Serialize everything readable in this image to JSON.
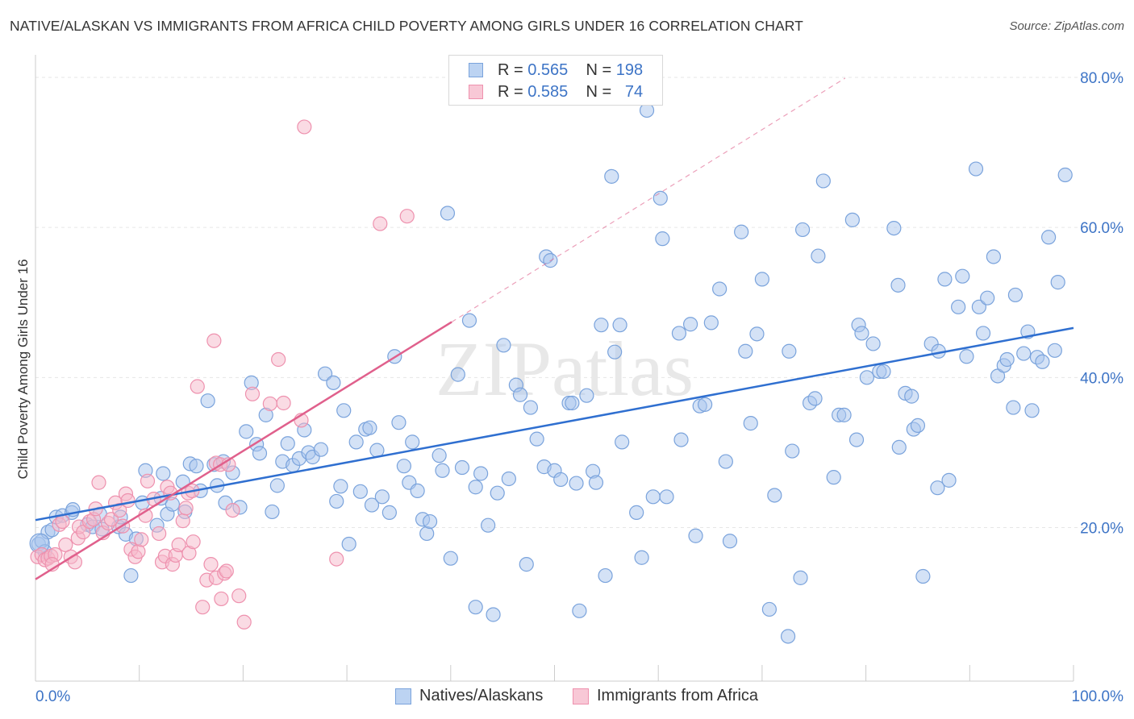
{
  "title": "NATIVE/ALASKAN VS IMMIGRANTS FROM AFRICA CHILD POVERTY AMONG GIRLS UNDER 16 CORRELATION CHART",
  "source": "Source: ZipAtlas.com",
  "watermark": "ZIPatlas",
  "colors": {
    "blue_fill": "#a9c6ee",
    "blue_stroke": "#7aa3dc",
    "blue_line": "#2f6fd0",
    "pink_fill": "#f5b8c9",
    "pink_stroke": "#ee91ae",
    "pink_line": "#e0608c",
    "tick_text": "#3d74c6",
    "grid": "#e6e6e6"
  },
  "legend_top": {
    "rows": [
      {
        "r_label": "R =",
        "r_value": "0.565",
        "n_label": "N =",
        "n_value": "198"
      },
      {
        "r_label": "R =",
        "r_value": "0.585",
        "n_label": "N =",
        "n_value": "74"
      }
    ]
  },
  "legend_bottom": {
    "items": [
      "Natives/Alaskans",
      "Immigrants from Africa"
    ]
  },
  "chart_data": {
    "type": "scatter",
    "title": "NATIVE/ALASKAN VS IMMIGRANTS FROM AFRICA CHILD POVERTY AMONG GIRLS UNDER 16 CORRELATION CHART",
    "xlabel": "",
    "ylabel": "Child Poverty Among Girls Under 16",
    "xlim": [
      0,
      100
    ],
    "ylim": [
      0,
      80
    ],
    "x_tick_labels": [
      "0.0%",
      "100.0%"
    ],
    "y_ticks": [
      20,
      40,
      60,
      80
    ],
    "y_tick_labels": [
      "20.0%",
      "40.0%",
      "60.0%",
      "80.0%"
    ],
    "grid": true,
    "legend_position": "top-center",
    "series": [
      {
        "name": "Natives/Alaskans",
        "r": 0.565,
        "n": 198,
        "trend": {
          "x": [
            0,
            100
          ],
          "y": [
            21.0,
            46.6
          ],
          "style": "solid"
        },
        "points": [
          [
            0.3,
            17.8
          ],
          [
            0.6,
            18.2
          ],
          [
            0.9,
            16.8
          ],
          [
            1.2,
            19.4
          ],
          [
            1.6,
            19.7
          ],
          [
            2,
            21.4
          ],
          [
            2.6,
            21.6
          ],
          [
            3.5,
            22
          ],
          [
            3.6,
            22.4
          ],
          [
            5,
            20.4
          ],
          [
            5.5,
            20.1
          ],
          [
            6.4,
            19.8
          ],
          [
            6.2,
            21.8
          ],
          [
            8,
            20.1
          ],
          [
            8.2,
            21.4
          ],
          [
            8.7,
            19.1
          ],
          [
            9.2,
            13.6
          ],
          [
            9.7,
            18.5
          ],
          [
            10.3,
            23.3
          ],
          [
            10.6,
            27.6
          ],
          [
            11.7,
            20.3
          ],
          [
            12.7,
            21.8
          ],
          [
            12.1,
            23.9
          ],
          [
            12.3,
            27.2
          ],
          [
            13.2,
            23.1
          ],
          [
            14.2,
            26.1
          ],
          [
            14.4,
            22.1
          ],
          [
            14.9,
            28.5
          ],
          [
            15.5,
            28.2
          ],
          [
            15.9,
            24.9
          ],
          [
            16.6,
            36.9
          ],
          [
            17.2,
            28.4
          ],
          [
            17.5,
            25.6
          ],
          [
            18.1,
            28.8
          ],
          [
            18.3,
            23.3
          ],
          [
            19,
            27.3
          ],
          [
            19.7,
            22.7
          ],
          [
            20.3,
            32.8
          ],
          [
            20.8,
            39.3
          ],
          [
            21.3,
            31.1
          ],
          [
            21.6,
            29.9
          ],
          [
            22.2,
            35
          ],
          [
            22.8,
            22.1
          ],
          [
            23.3,
            25.6
          ],
          [
            23.8,
            28.8
          ],
          [
            24.3,
            31.2
          ],
          [
            24.8,
            28.3
          ],
          [
            25.4,
            29.2
          ],
          [
            25.9,
            33
          ],
          [
            26.3,
            30
          ],
          [
            26.7,
            29.4
          ],
          [
            27.5,
            30.4
          ],
          [
            27.9,
            40.5
          ],
          [
            28.7,
            39.3
          ],
          [
            29,
            23.5
          ],
          [
            29.4,
            25.5
          ],
          [
            29.7,
            35.6
          ],
          [
            30.2,
            17.8
          ],
          [
            30.9,
            31.4
          ],
          [
            31.3,
            24.8
          ],
          [
            31.8,
            33.1
          ],
          [
            32.2,
            33.3
          ],
          [
            32.4,
            23
          ],
          [
            32.9,
            30.3
          ],
          [
            33.4,
            24.1
          ],
          [
            34.1,
            22
          ],
          [
            34.6,
            42.8
          ],
          [
            35,
            34
          ],
          [
            35.5,
            28.2
          ],
          [
            36,
            26
          ],
          [
            36.3,
            31.4
          ],
          [
            36.8,
            24.9
          ],
          [
            37.3,
            21.1
          ],
          [
            37.7,
            19.2
          ],
          [
            38,
            20.8
          ],
          [
            38.9,
            29.6
          ],
          [
            39.2,
            27.6
          ],
          [
            39.7,
            61.9
          ],
          [
            40,
            15.9
          ],
          [
            40.7,
            40.4
          ],
          [
            41.1,
            28
          ],
          [
            41.8,
            47.6
          ],
          [
            42.4,
            25.4
          ],
          [
            42.4,
            9.4
          ],
          [
            42.9,
            27.2
          ],
          [
            43.6,
            20.3
          ],
          [
            44.1,
            8.4
          ],
          [
            44.5,
            24.6
          ],
          [
            45.1,
            44.3
          ],
          [
            45.6,
            26.5
          ],
          [
            46.3,
            39
          ],
          [
            46.7,
            37.7
          ],
          [
            47.3,
            15.1
          ],
          [
            47.7,
            36
          ],
          [
            48.3,
            31.8
          ],
          [
            49,
            28.1
          ],
          [
            49.2,
            56.1
          ],
          [
            49.6,
            55.6
          ],
          [
            50,
            27.6
          ],
          [
            50.6,
            26.4
          ],
          [
            51.4,
            36.6
          ],
          [
            51.7,
            36.6
          ],
          [
            52.1,
            25.9
          ],
          [
            52.4,
            8.9
          ],
          [
            53.1,
            37.6
          ],
          [
            53.7,
            27.5
          ],
          [
            54,
            26
          ],
          [
            54.5,
            47
          ],
          [
            54.9,
            13.6
          ],
          [
            55.5,
            66.8
          ],
          [
            55.8,
            43.4
          ],
          [
            56.3,
            47
          ],
          [
            56.5,
            31.4
          ],
          [
            57.9,
            22
          ],
          [
            58.4,
            16
          ],
          [
            58.9,
            75.6
          ],
          [
            59.5,
            24.1
          ],
          [
            60.2,
            63.9
          ],
          [
            60.4,
            58.5
          ],
          [
            60.8,
            24.1
          ],
          [
            62,
            45.9
          ],
          [
            62.2,
            31.7
          ],
          [
            63.1,
            47.1
          ],
          [
            63.6,
            18.9
          ],
          [
            64,
            36.2
          ],
          [
            64.5,
            36.4
          ],
          [
            65.1,
            47.3
          ],
          [
            65.9,
            51.8
          ],
          [
            66.5,
            28.8
          ],
          [
            66.9,
            18.2
          ],
          [
            68,
            59.4
          ],
          [
            68.4,
            43.5
          ],
          [
            68.9,
            33.9
          ],
          [
            69.5,
            45.8
          ],
          [
            70,
            53.1
          ],
          [
            70.7,
            9.1
          ],
          [
            71.2,
            24.3
          ],
          [
            72.5,
            5.5
          ],
          [
            72.6,
            43.5
          ],
          [
            72.9,
            30.2
          ],
          [
            73.7,
            13.3
          ],
          [
            73.9,
            59.7
          ],
          [
            74.6,
            36.6
          ],
          [
            75.1,
            37.2
          ],
          [
            75.4,
            56.2
          ],
          [
            75.9,
            66.2
          ],
          [
            76.9,
            26.7
          ],
          [
            77.4,
            35
          ],
          [
            77.9,
            35
          ],
          [
            78.7,
            61
          ],
          [
            79.1,
            31.7
          ],
          [
            79.3,
            47
          ],
          [
            79.6,
            45.9
          ],
          [
            80.1,
            40
          ],
          [
            80.7,
            44.5
          ],
          [
            81.3,
            40.8
          ],
          [
            81.7,
            40.8
          ],
          [
            82.7,
            59.9
          ],
          [
            83.1,
            52.3
          ],
          [
            83.2,
            30.7
          ],
          [
            83.8,
            37.9
          ],
          [
            84.4,
            37.5
          ],
          [
            84.6,
            33.1
          ],
          [
            85,
            33.6
          ],
          [
            85.5,
            13.5
          ],
          [
            86.3,
            44.5
          ],
          [
            86.9,
            25.3
          ],
          [
            87,
            43.5
          ],
          [
            87.6,
            53.1
          ],
          [
            88,
            26.3
          ],
          [
            88.9,
            49.4
          ],
          [
            89.3,
            53.5
          ],
          [
            89.7,
            42.8
          ],
          [
            90.6,
            67.8
          ],
          [
            90.9,
            49.4
          ],
          [
            91.3,
            45.9
          ],
          [
            91.7,
            50.6
          ],
          [
            92.3,
            56.1
          ],
          [
            92.7,
            40.2
          ],
          [
            93.3,
            41.6
          ],
          [
            93.6,
            42.4
          ],
          [
            94.2,
            36
          ],
          [
            94.4,
            51
          ],
          [
            95.2,
            43.2
          ],
          [
            95.6,
            46.1
          ],
          [
            96,
            35.6
          ],
          [
            96.5,
            42.7
          ],
          [
            97,
            42.1
          ],
          [
            97.6,
            58.7
          ],
          [
            98.2,
            43.6
          ],
          [
            98.5,
            52.7
          ],
          [
            99.2,
            67
          ]
        ]
      },
      {
        "name": "Immigrants from Africa",
        "r": 0.585,
        "n": 74,
        "trend": {
          "x": [
            0,
            40.1
          ],
          "y": [
            13.1,
            47.4
          ],
          "style": "solid",
          "extension": {
            "x": [
              40.1,
              78
            ],
            "y": [
              47.4,
              79.9
            ],
            "style": "dashed"
          }
        },
        "points": [
          [
            0.2,
            16.1
          ],
          [
            0.6,
            16.4
          ],
          [
            0.9,
            15.7
          ],
          [
            1.2,
            15.9
          ],
          [
            1.5,
            16.2
          ],
          [
            1.9,
            16.4
          ],
          [
            1.6,
            15.1
          ],
          [
            2.3,
            20.4
          ],
          [
            2.6,
            20.8
          ],
          [
            2.9,
            17.7
          ],
          [
            3.4,
            16.1
          ],
          [
            3.8,
            15.4
          ],
          [
            4.1,
            18.6
          ],
          [
            4.2,
            20.1
          ],
          [
            4.6,
            19.4
          ],
          [
            5.2,
            20.8
          ],
          [
            5.6,
            21.1
          ],
          [
            5.8,
            22.5
          ],
          [
            6.1,
            26
          ],
          [
            6.5,
            19.3
          ],
          [
            7,
            20.6
          ],
          [
            7.3,
            21.1
          ],
          [
            7.7,
            23.3
          ],
          [
            8.1,
            22.3
          ],
          [
            8.4,
            20.2
          ],
          [
            8.7,
            24.5
          ],
          [
            8.9,
            23.6
          ],
          [
            9.2,
            17.1
          ],
          [
            9.6,
            16.1
          ],
          [
            9.9,
            16.8
          ],
          [
            10.2,
            18.4
          ],
          [
            10.6,
            21.6
          ],
          [
            10.8,
            26.2
          ],
          [
            11.4,
            23.8
          ],
          [
            11.9,
            19.2
          ],
          [
            12.2,
            15.4
          ],
          [
            12.5,
            16.2
          ],
          [
            12.7,
            25.4
          ],
          [
            13,
            24.6
          ],
          [
            13.2,
            15.1
          ],
          [
            13.5,
            16.3
          ],
          [
            13.8,
            17.7
          ],
          [
            14.2,
            20.9
          ],
          [
            14.5,
            22.6
          ],
          [
            14.7,
            24.6
          ],
          [
            14.8,
            16.6
          ],
          [
            15.1,
            24.9
          ],
          [
            15.2,
            18.1
          ],
          [
            15.6,
            38.8
          ],
          [
            16.1,
            9.4
          ],
          [
            16.5,
            13
          ],
          [
            16.9,
            15.1
          ],
          [
            17.2,
            44.9
          ],
          [
            17.4,
            13.3
          ],
          [
            17.9,
            10.5
          ],
          [
            17.4,
            28.6
          ],
          [
            17.8,
            28.4
          ],
          [
            18.2,
            13.9
          ],
          [
            18.4,
            14.2
          ],
          [
            18.6,
            28.4
          ],
          [
            19,
            22.3
          ],
          [
            19.6,
            10.9
          ],
          [
            20.1,
            7.4
          ],
          [
            20.9,
            37.8
          ],
          [
            22.6,
            36.5
          ],
          [
            23.4,
            42.4
          ],
          [
            23.9,
            36.6
          ],
          [
            25.6,
            34.3
          ],
          [
            25.9,
            73.4
          ],
          [
            29,
            15.8
          ],
          [
            33.2,
            60.5
          ],
          [
            35.8,
            61.5
          ]
        ]
      }
    ]
  }
}
